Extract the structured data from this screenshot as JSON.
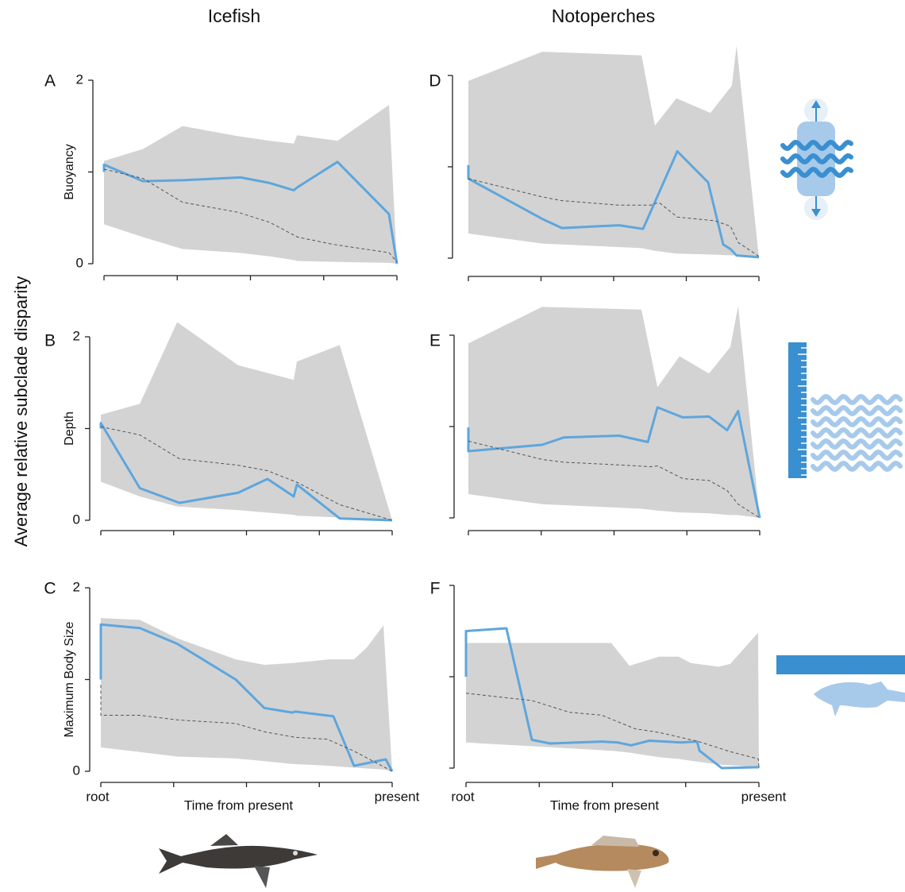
{
  "columns": [
    "Icefish",
    "Notoperches"
  ],
  "y_label": "Average relative subclade disparity",
  "chart_data": [
    {
      "type": "line",
      "panel": "A",
      "ylabel": "Buoyancy",
      "xlim": [
        0,
        1
      ],
      "ylim": [
        0,
        2
      ],
      "yticks": [
        0,
        {
          "value": 1,
          "label": null
        },
        2
      ],
      "xticks": [
        {
          "value": 0,
          "label": null
        },
        {
          "value": 0.25,
          "label": null
        },
        {
          "value": 0.5,
          "label": null
        },
        {
          "value": 0.75,
          "label": null
        },
        {
          "value": 1,
          "label": null
        }
      ],
      "band": {
        "color": "#d3d3d4",
        "x": [
          0,
          0.133,
          0.268,
          0.458,
          0.566,
          0.648,
          0.659,
          0.797,
          0.973,
          1
        ],
        "upper": [
          1.12,
          1.25,
          1.5,
          1.39,
          1.34,
          1.31,
          1.4,
          1.34,
          1.73,
          0
        ],
        "lower": [
          0.43,
          0.29,
          0.16,
          0.12,
          0.08,
          0.04,
          0.03,
          0.02,
          0.01,
          0
        ]
      },
      "series": [
        {
          "color": "#5ea6dc",
          "dashed": false,
          "x": [
            0,
            0,
            0.133,
            0.268,
            0.466,
            0.566,
            0.648,
            0.659,
            0.797,
            0.973,
            1
          ],
          "values": [
            1.0,
            1.08,
            0.9,
            0.91,
            0.94,
            0.88,
            0.8,
            0.83,
            1.11,
            0.54,
            0
          ]
        },
        {
          "color": "#555555",
          "dashed": true,
          "x": [
            0,
            0.133,
            0.268,
            0.458,
            0.566,
            0.661,
            0.783,
            0.973,
            1
          ],
          "values": [
            1.03,
            0.93,
            0.67,
            0.56,
            0.45,
            0.29,
            0.21,
            0.12,
            0.02
          ]
        }
      ]
    },
    {
      "type": "line",
      "panel": "B",
      "ylabel": "Depth",
      "xlim": [
        0,
        1
      ],
      "ylim": [
        0,
        2
      ],
      "yticks": [
        0,
        {
          "value": 1,
          "label": null
        },
        2
      ],
      "xticks": [
        {
          "value": 0,
          "label": null
        },
        {
          "value": 0.25,
          "label": null
        },
        {
          "value": 0.5,
          "label": null
        },
        {
          "value": 0.75,
          "label": null
        },
        {
          "value": 1,
          "label": null
        }
      ],
      "band": {
        "color": "#d3d3d4",
        "x": [
          0,
          0.134,
          0.262,
          0.471,
          0.662,
          0.673,
          0.82,
          1
        ],
        "upper": [
          1.15,
          1.27,
          2.16,
          1.69,
          1.53,
          1.73,
          1.91,
          0
        ],
        "lower": [
          0.42,
          0.26,
          0.15,
          0.11,
          0.06,
          0.05,
          0.03,
          0
        ]
      },
      "series": [
        {
          "color": "#5ea6dc",
          "dashed": false,
          "x": [
            0,
            0,
            0.134,
            0.27,
            0.471,
            0.572,
            0.662,
            0.673,
            0.82,
            1
          ],
          "values": [
            1.0,
            1.06,
            0.35,
            0.19,
            0.3,
            0.45,
            0.26,
            0.39,
            0.02,
            0
          ]
        },
        {
          "color": "#555555",
          "dashed": true,
          "x": [
            0,
            0.134,
            0.27,
            0.471,
            0.572,
            0.676,
            0.82,
            1
          ],
          "values": [
            1.02,
            0.93,
            0.67,
            0.6,
            0.54,
            0.41,
            0.17,
            0
          ]
        }
      ]
    },
    {
      "type": "line",
      "panel": "C",
      "ylabel": "Maximum Body Size",
      "xlabel": "Time from present",
      "xlim": [
        0,
        1
      ],
      "ylim": [
        0,
        2
      ],
      "yticks": [
        0,
        {
          "value": 1,
          "label": null
        },
        2
      ],
      "xticks": [
        {
          "value": 0,
          "label": "root"
        },
        {
          "value": 0.25,
          "label": null
        },
        {
          "value": 0.5,
          "label": null
        },
        {
          "value": 0.75,
          "label": null
        },
        {
          "value": 1,
          "label": "present"
        }
      ],
      "band": {
        "color": "#d3d3d4",
        "x": [
          0,
          0.134,
          0.262,
          0.463,
          0.561,
          0.657,
          0.785,
          0.869,
          0.913,
          0.97,
          1
        ],
        "upper": [
          1.67,
          1.65,
          1.45,
          1.22,
          1.16,
          1.18,
          1.22,
          1.22,
          1.35,
          1.59,
          0
        ],
        "lower": [
          0.26,
          0.21,
          0.16,
          0.14,
          0.11,
          0.08,
          0.06,
          0.04,
          0.03,
          0.02,
          0
        ]
      },
      "series": [
        {
          "color": "#5ea6dc",
          "dashed": false,
          "x": [
            0,
            0,
            0.134,
            0.262,
            0.463,
            0.561,
            0.657,
            0.668,
            0.798,
            0.869,
            0.978,
            1
          ],
          "values": [
            1.0,
            1.6,
            1.56,
            1.39,
            1.0,
            0.69,
            0.64,
            0.65,
            0.6,
            0.06,
            0.13,
            0
          ]
        },
        {
          "color": "#555555",
          "dashed": true,
          "x": [
            0,
            0,
            0.134,
            0.262,
            0.463,
            0.561,
            0.668,
            0.777,
            0.869,
            1
          ],
          "values": [
            0.94,
            0.61,
            0.61,
            0.56,
            0.52,
            0.43,
            0.37,
            0.35,
            0.22,
            0
          ]
        }
      ]
    },
    {
      "type": "line",
      "panel": "D",
      "xlim": [
        0,
        1
      ],
      "ylim": [
        0,
        2
      ],
      "yticks": [
        {
          "value": 0,
          "label": null
        },
        {
          "value": 1,
          "label": null
        },
        {
          "value": 2,
          "label": null
        }
      ],
      "xticks": [
        {
          "value": 0,
          "label": null
        },
        {
          "value": 0.25,
          "label": null
        },
        {
          "value": 0.5,
          "label": null
        },
        {
          "value": 0.75,
          "label": null
        },
        {
          "value": 1,
          "label": null
        }
      ],
      "band": {
        "color": "#d3d3d4",
        "x": [
          0,
          0.254,
          0.596,
          0.642,
          0.716,
          0.833,
          0.907,
          0.923,
          1
        ],
        "upper": [
          1.94,
          2.26,
          2.22,
          1.45,
          1.75,
          1.59,
          1.89,
          2.33,
          0
        ],
        "lower": [
          0.27,
          0.16,
          0.11,
          0.08,
          0.05,
          0.04,
          0.03,
          0.03,
          0
        ]
      },
      "series": [
        {
          "color": "#5ea6dc",
          "dashed": false,
          "x": [
            0,
            0,
            0.254,
            0.322,
            0.519,
            0.601,
            0.719,
            0.825,
            0.877,
            0.902,
            0.923,
            1
          ],
          "values": [
            1.02,
            0.87,
            0.43,
            0.33,
            0.36,
            0.32,
            1.17,
            0.83,
            0.15,
            0.1,
            0.03,
            0.01
          ]
        },
        {
          "color": "#555555",
          "dashed": true,
          "x": [
            0,
            0.254,
            0.322,
            0.519,
            0.628,
            0.656,
            0.719,
            0.847,
            0.902,
            0.929,
            1
          ],
          "values": [
            0.87,
            0.67,
            0.63,
            0.58,
            0.58,
            0.61,
            0.45,
            0.41,
            0.35,
            0.17,
            0.02
          ]
        }
      ]
    },
    {
      "type": "line",
      "panel": "E",
      "xlim": [
        0,
        1
      ],
      "ylim": [
        0,
        2
      ],
      "yticks": [
        {
          "value": 0,
          "label": null
        },
        {
          "value": 1,
          "label": null
        },
        {
          "value": 2,
          "label": null
        }
      ],
      "xticks": [
        {
          "value": 0,
          "label": null
        },
        {
          "value": 0.25,
          "label": null
        },
        {
          "value": 0.5,
          "label": null
        },
        {
          "value": 0.75,
          "label": null
        },
        {
          "value": 1,
          "label": null
        }
      ],
      "band": {
        "color": "#d3d3d4",
        "x": [
          0,
          0.253,
          0.594,
          0.649,
          0.725,
          0.826,
          0.899,
          0.926,
          1
        ],
        "upper": [
          1.91,
          2.31,
          2.28,
          1.43,
          1.77,
          1.58,
          1.87,
          2.32,
          0
        ],
        "lower": [
          0.26,
          0.15,
          0.1,
          0.08,
          0.06,
          0.05,
          0.03,
          0.03,
          0
        ]
      },
      "series": [
        {
          "color": "#5ea6dc",
          "dashed": false,
          "x": [
            0,
            0,
            0.253,
            0.327,
            0.518,
            0.616,
            0.649,
            0.736,
            0.826,
            0.888,
            0.926,
            1
          ],
          "values": [
            0.99,
            0.73,
            0.8,
            0.88,
            0.9,
            0.83,
            1.21,
            1.1,
            1.11,
            0.96,
            1.17,
            0
          ]
        },
        {
          "color": "#555555",
          "dashed": true,
          "x": [
            0,
            0.253,
            0.327,
            0.518,
            0.627,
            0.649,
            0.736,
            0.826,
            0.888,
            0.926,
            1
          ],
          "values": [
            0.84,
            0.64,
            0.61,
            0.58,
            0.56,
            0.57,
            0.43,
            0.41,
            0.3,
            0.15,
            0
          ]
        }
      ]
    },
    {
      "type": "line",
      "panel": "F",
      "xlabel": "Time from present",
      "xlim": [
        0,
        1
      ],
      "ylim": [
        0,
        2
      ],
      "yticks": [
        {
          "value": 0,
          "label": null
        },
        {
          "value": 1,
          "label": null
        },
        {
          "value": 2,
          "label": null
        }
      ],
      "xticks": [
        {
          "value": 0,
          "label": "root"
        },
        {
          "value": 0.25,
          "label": null
        },
        {
          "value": 0.5,
          "label": null
        },
        {
          "value": 0.75,
          "label": null
        },
        {
          "value": 1,
          "label": "present"
        }
      ],
      "band": {
        "color": "#d3d3d4",
        "x": [
          0,
          0.496,
          0.558,
          0.659,
          0.726,
          0.767,
          0.862,
          0.902,
          0.997,
          1
        ],
        "upper": [
          1.37,
          1.37,
          1.12,
          1.22,
          1.22,
          1.15,
          1.11,
          1.14,
          1.48,
          0
        ],
        "lower": [
          0.28,
          0.19,
          0.17,
          0.12,
          0.1,
          0.08,
          0.04,
          0.03,
          0.01,
          0
        ]
      },
      "series": [
        {
          "color": "#5ea6dc",
          "dashed": false,
          "x": [
            0,
            0,
            0.138,
            0.225,
            0.287,
            0.463,
            0.518,
            0.564,
            0.626,
            0.734,
            0.789,
            0.797,
            0.873,
            0.998,
            1
          ],
          "values": [
            1.0,
            1.5,
            1.53,
            0.31,
            0.27,
            0.29,
            0.28,
            0.25,
            0.3,
            0.28,
            0.29,
            0.19,
            0,
            0.01,
            0
          ]
        },
        {
          "color": "#555555",
          "dashed": true,
          "x": [
            0,
            0.138,
            0.225,
            0.355,
            0.463,
            0.577,
            0.659,
            0.794,
            0.902,
            0.998,
            1
          ],
          "values": [
            0.82,
            0.77,
            0.74,
            0.61,
            0.58,
            0.43,
            0.39,
            0.29,
            0.18,
            0.1,
            0
          ]
        }
      ]
    }
  ]
}
